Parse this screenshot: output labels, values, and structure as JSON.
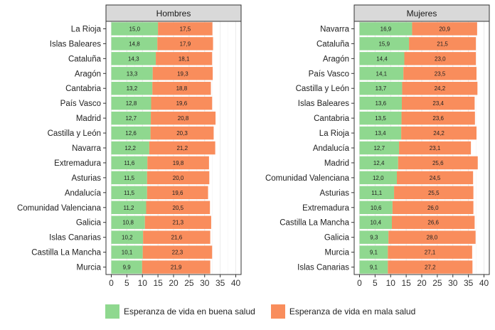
{
  "chart_data": [
    {
      "type": "bar",
      "orientation": "horizontal",
      "stacked": true,
      "title": "Hombres",
      "categories": [
        "La Rioja",
        "Islas Baleares",
        "Cataluña",
        "Aragón",
        "Cantabria",
        "País Vasco",
        "Madrid",
        "Castilla y León",
        "Navarra",
        "Extremadura",
        "Asturias",
        "Andalucía",
        "Comunidad Valenciana",
        "Galicia",
        "Islas Canarias",
        "Castilla La Mancha",
        "Murcia"
      ],
      "series": [
        {
          "name": "Esperanza de vida en buena salud",
          "color": "#8fd88f",
          "values": [
            15.0,
            14.8,
            14.3,
            13.3,
            13.2,
            12.8,
            12.7,
            12.6,
            12.2,
            11.6,
            11.5,
            11.5,
            11.2,
            10.8,
            10.2,
            10.1,
            9.9
          ],
          "labels": [
            "15,0",
            "14,8",
            "14,3",
            "13,3",
            "13,2",
            "12,8",
            "12,7",
            "12,6",
            "12,2",
            "11,6",
            "11,5",
            "11,5",
            "11,2",
            "10,8",
            "10,2",
            "10,1",
            "9,9"
          ]
        },
        {
          "name": "Esperanza de vida en mala salud",
          "color": "#f98d5c",
          "values": [
            17.5,
            17.9,
            18.1,
            19.3,
            18.8,
            19.6,
            20.8,
            20.3,
            21.2,
            19.8,
            20.0,
            19.6,
            20.5,
            21.3,
            21.6,
            22.3,
            21.9
          ],
          "labels": [
            "17,5",
            "17,9",
            "18,1",
            "19,3",
            "18,8",
            "19,6",
            "20,8",
            "20,3",
            "21,2",
            "19,8",
            "20,0",
            "19,6",
            "20,5",
            "21,3",
            "21,6",
            "22,3",
            "21,9"
          ]
        }
      ],
      "xlim": [
        0,
        40
      ],
      "xticks": [
        "0",
        "5",
        "10",
        "15",
        "20",
        "25",
        "30",
        "35",
        "40"
      ]
    },
    {
      "type": "bar",
      "orientation": "horizontal",
      "stacked": true,
      "title": "Mujeres",
      "categories": [
        "Navarra",
        "Cataluña",
        "Aragón",
        "País Vasco",
        "Castilla y León",
        "Islas Baleares",
        "Cantabria",
        "La Rioja",
        "Andalucía",
        "Madrid",
        "Comunidad Valenciana",
        "Asturias",
        "Extremadura",
        "Castilla La Mancha",
        "Galicia",
        "Murcia",
        "Islas Canarias"
      ],
      "series": [
        {
          "name": "Esperanza de vida en buena salud",
          "color": "#8fd88f",
          "values": [
            16.9,
            15.9,
            14.4,
            14.1,
            13.7,
            13.6,
            13.5,
            13.4,
            12.7,
            12.4,
            12.0,
            11.1,
            10.6,
            10.4,
            9.3,
            9.1,
            9.1
          ],
          "labels": [
            "16,9",
            "15,9",
            "14,4",
            "14,1",
            "13,7",
            "13,6",
            "13,5",
            "13,4",
            "12,7",
            "12,4",
            "12,0",
            "11,1",
            "10,6",
            "10,4",
            "9,3",
            "9,1",
            "9,1"
          ]
        },
        {
          "name": "Esperanza de vida en mala salud",
          "color": "#f98d5c",
          "values": [
            20.9,
            21.5,
            23.0,
            23.5,
            24.2,
            23.4,
            23.6,
            24.2,
            23.1,
            25.6,
            24.5,
            25.5,
            26.0,
            26.6,
            28.0,
            27.1,
            27.2
          ],
          "labels": [
            "20,9",
            "21,5",
            "23,0",
            "23,5",
            "24,2",
            "23,4",
            "23,6",
            "24,2",
            "23,1",
            "25,6",
            "24,5",
            "25,5",
            "26,0",
            "26,6",
            "28,0",
            "27,1",
            "27,2"
          ]
        }
      ],
      "xlim": [
        0,
        40
      ],
      "xticks": [
        "0",
        "5",
        "10",
        "15",
        "20",
        "25",
        "30",
        "35",
        "40"
      ]
    }
  ],
  "legend": {
    "items": [
      {
        "label": "Esperanza de vida en buena salud",
        "color": "#8fd88f"
      },
      {
        "label": "Esperanza de vida en mala salud",
        "color": "#f98d5c"
      }
    ]
  }
}
